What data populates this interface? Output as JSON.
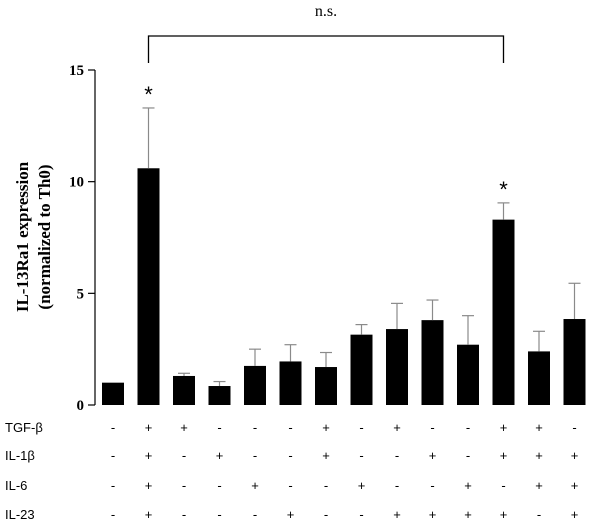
{
  "chart_data": {
    "type": "bar",
    "ylabel_line1": "IL-13Ra1 expression",
    "ylabel_line2": "(normalized to Th0)",
    "ylim": [
      0,
      15
    ],
    "yticks": [
      0,
      5,
      10,
      15
    ],
    "values": [
      1.0,
      10.6,
      1.3,
      0.85,
      1.75,
      1.95,
      1.7,
      3.15,
      3.4,
      3.8,
      2.7,
      8.3,
      2.4,
      3.85
    ],
    "errors": [
      0.0,
      2.7,
      0.12,
      0.2,
      0.75,
      0.75,
      0.65,
      0.45,
      1.15,
      0.9,
      1.3,
      0.75,
      0.9,
      1.6
    ],
    "significance": [
      {
        "index": 1,
        "label": "*"
      },
      {
        "index": 11,
        "label": "*"
      }
    ],
    "bracket": {
      "from": 1,
      "to": 11,
      "label": "n.s."
    },
    "conditions": [
      {
        "name": "TGF-β",
        "signs": [
          "-",
          "+",
          "+",
          "-",
          "-",
          "-",
          "+",
          "-",
          "+",
          "-",
          "-",
          "+",
          "+",
          "-"
        ]
      },
      {
        "name": "IL-1β",
        "signs": [
          "-",
          "+",
          "-",
          "+",
          "-",
          "-",
          "+",
          "-",
          "-",
          "+",
          "-",
          "+",
          "+",
          "+"
        ]
      },
      {
        "name": "IL-6",
        "signs": [
          "-",
          "+",
          "-",
          "-",
          "+",
          "-",
          "-",
          "+",
          "-",
          "-",
          "+",
          "-",
          "+",
          "+"
        ]
      },
      {
        "name": "IL-23",
        "signs": [
          "-",
          "+",
          "-",
          "-",
          "-",
          "+",
          "-",
          "-",
          "+",
          "+",
          "+",
          "+",
          "-",
          "+"
        ]
      }
    ]
  }
}
